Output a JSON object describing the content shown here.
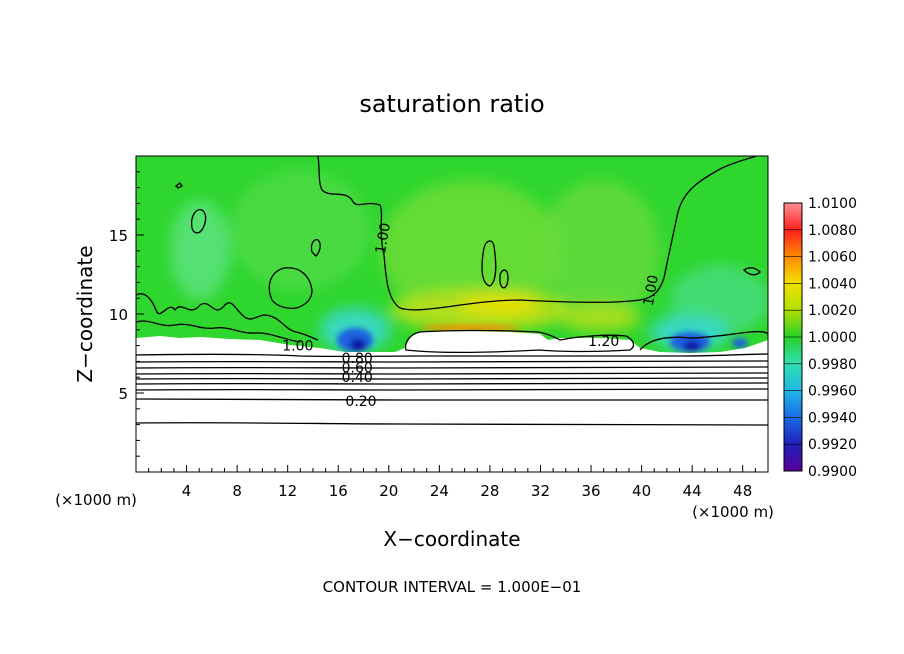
{
  "chart_data": {
    "type": "heatmap",
    "title": "saturation ratio",
    "xlabel": "X−coordinate",
    "ylabel": "Z−coordinate",
    "x_unit_left": "(×1000 m)",
    "x_unit_right": "(×1000 m)",
    "footer": "CONTOUR INTERVAL = 1.000E−01",
    "xlim": [
      0,
      50
    ],
    "ylim": [
      0,
      20
    ],
    "x_ticks": [
      4,
      8,
      12,
      16,
      20,
      24,
      28,
      32,
      36,
      40,
      44,
      48
    ],
    "x_tick_labels": [
      "4",
      "8",
      "12",
      "16",
      "20",
      "24",
      "28",
      "32",
      "36",
      "40",
      "44",
      "48"
    ],
    "y_ticks": [
      5,
      10,
      15
    ],
    "y_tick_labels": [
      "5",
      "10",
      "15"
    ],
    "contour_labels": [
      {
        "text": "1.00",
        "x": 19.5,
        "z": 14.8,
        "angle": -80
      },
      {
        "text": "1.00",
        "x": 40.7,
        "z": 11.5,
        "angle": -80
      },
      {
        "text": "1.20",
        "x": 37.0,
        "z": 8.3,
        "angle": 0
      },
      {
        "text": "1.00",
        "x": 12.8,
        "z": 8.0,
        "angle": 0
      },
      {
        "text": "0.80",
        "x": 17.5,
        "z": 7.2,
        "angle": 0
      },
      {
        "text": "0.60",
        "x": 17.5,
        "z": 6.6,
        "angle": 0
      },
      {
        "text": "0.40",
        "x": 17.5,
        "z": 6.0,
        "angle": 0
      },
      {
        "text": "0.20",
        "x": 17.8,
        "z": 4.5,
        "angle": 0
      }
    ],
    "colorbar": {
      "levels": [
        "0.9900",
        "0.9920",
        "0.9940",
        "0.9960",
        "0.9980",
        "1.0000",
        "1.0020",
        "1.0040",
        "1.0060",
        "1.0080",
        "1.0100"
      ],
      "colors": [
        "#5a009a",
        "#2020b8",
        "#1a6ae6",
        "#20b8e6",
        "#30e0b0",
        "#28d028",
        "#b0e000",
        "#f2e000",
        "#ff8a00",
        "#ff2020",
        "#ff9090"
      ]
    },
    "field_colors": {
      "background_green": "#2ed62e",
      "light_green": "#66e040",
      "yellow_green": "#b8e018",
      "cyan": "#38d8c8",
      "blue": "#1a60e0",
      "deep_blue": "#1010a0",
      "subsaturated": "#ffffff"
    }
  }
}
